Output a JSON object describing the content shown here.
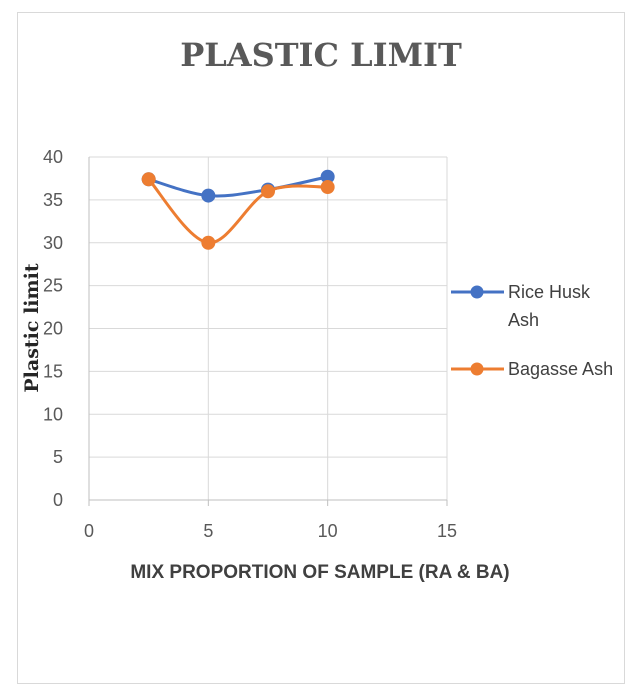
{
  "chart_data": {
    "type": "line",
    "title": "PLASTIC LIMIT",
    "xlabel": "MIX PROPORTION OF SAMPLE (RA & BA)",
    "ylabel": "Plastic limit",
    "xlim": [
      0,
      15
    ],
    "ylim": [
      0,
      40
    ],
    "xticks": [
      0,
      5,
      10,
      15
    ],
    "yticks": [
      0,
      5,
      10,
      15,
      20,
      25,
      30,
      35,
      40
    ],
    "grid": true,
    "smooth": true,
    "legend_position": "right",
    "series": [
      {
        "name": "Rice Husk Ash",
        "legend_lines": [
          "Rice Husk",
          "Ash"
        ],
        "color": "#4472c4",
        "x": [
          2.5,
          5,
          7.5,
          10
        ],
        "y": [
          37.4,
          35.5,
          36.2,
          37.7
        ]
      },
      {
        "name": "Bagasse Ash",
        "legend_lines": [
          "Bagasse Ash"
        ],
        "color": "#ed7d31",
        "x": [
          2.5,
          5,
          7.5,
          10
        ],
        "y": [
          37.4,
          30.0,
          36.0,
          36.5
        ]
      }
    ]
  }
}
